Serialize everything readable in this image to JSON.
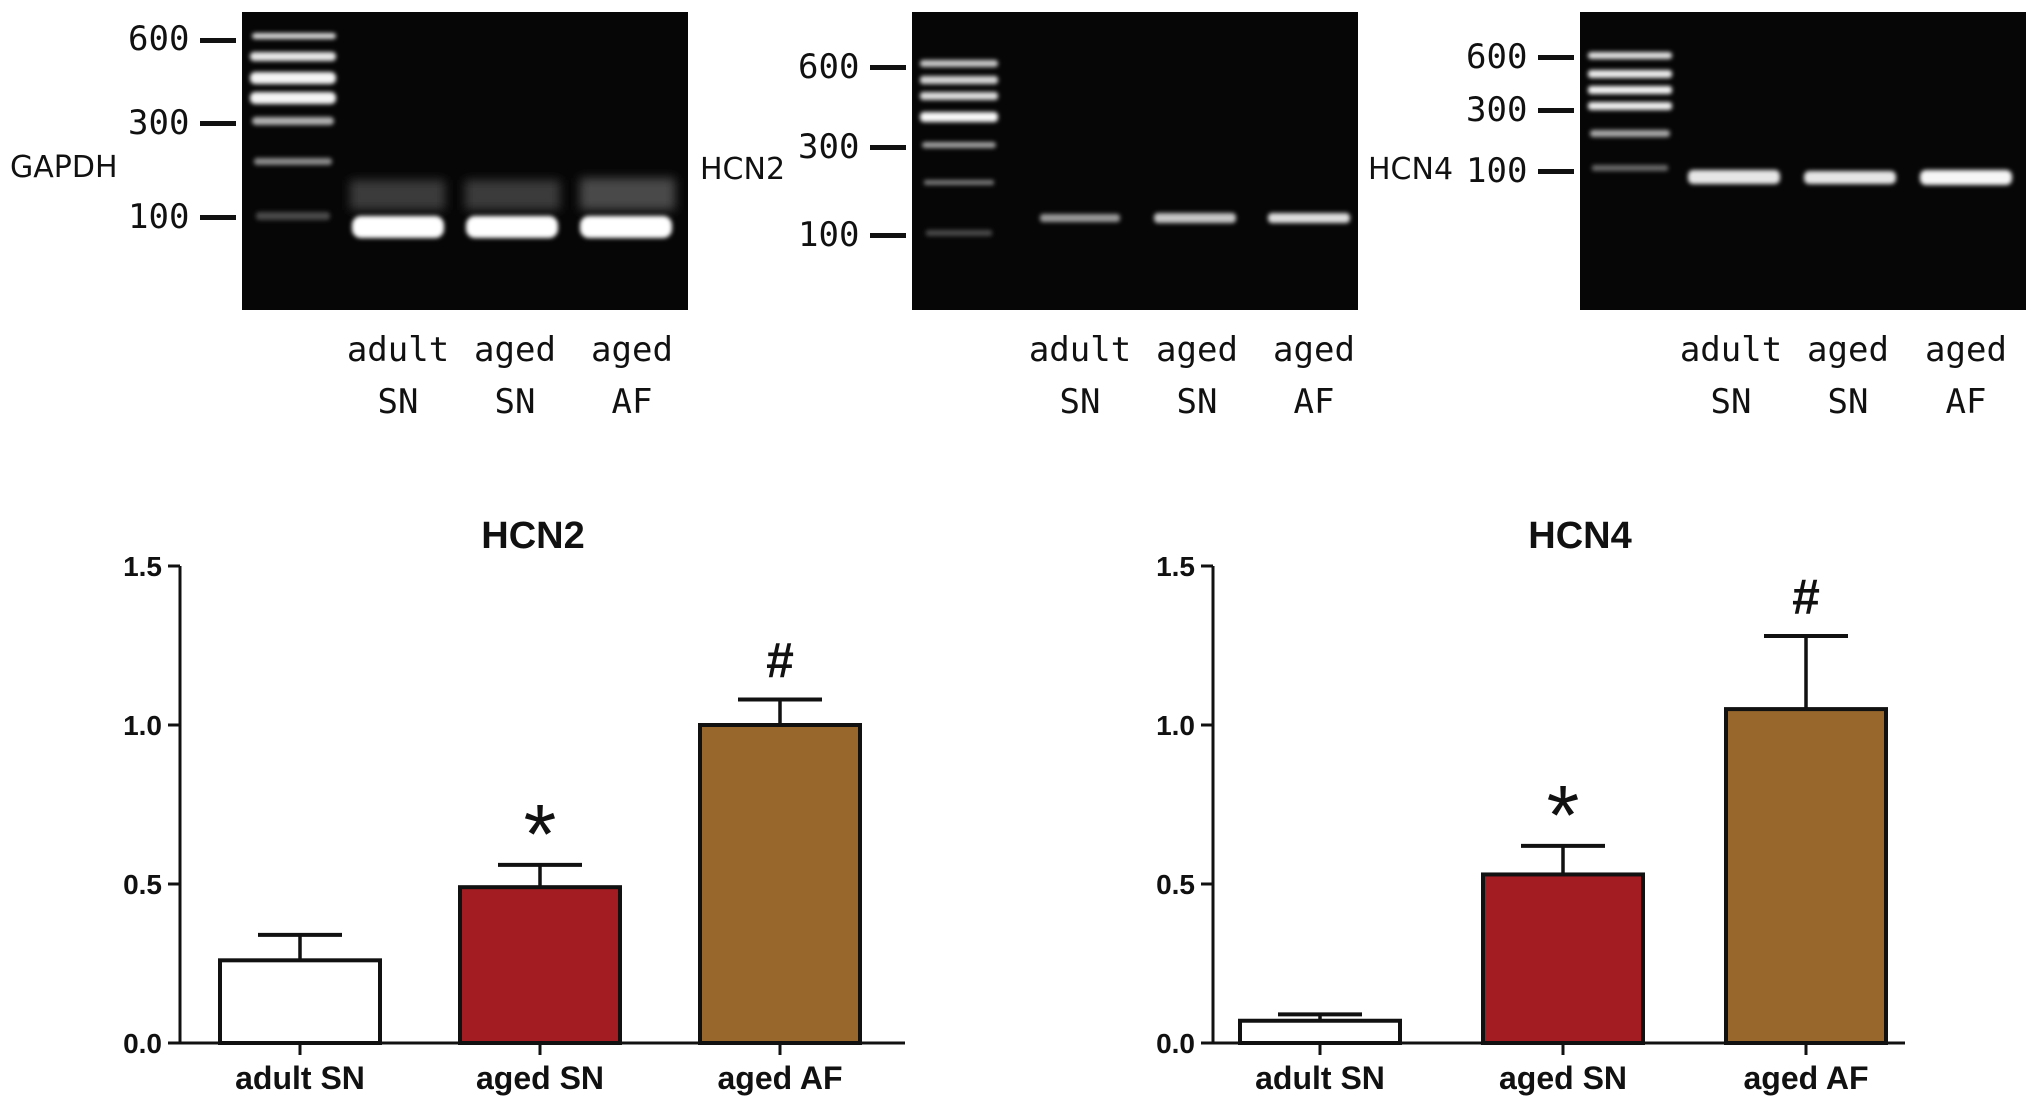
{
  "gels": [
    {
      "gene": "GAPDH",
      "ladder_marks": [
        "600",
        "300",
        "100"
      ],
      "lanes": [
        {
          "line1": "adult",
          "line2": "SN"
        },
        {
          "line1": "aged",
          "line2": "SN"
        },
        {
          "line1": "aged",
          "line2": "AF"
        }
      ]
    },
    {
      "gene": "HCN2",
      "ladder_marks": [
        "600",
        "300",
        "100"
      ],
      "lanes": [
        {
          "line1": "adult",
          "line2": "SN"
        },
        {
          "line1": "aged",
          "line2": "SN"
        },
        {
          "line1": "aged",
          "line2": "AF"
        }
      ]
    },
    {
      "gene": "HCN4",
      "ladder_marks": [
        "600",
        "300",
        "100"
      ],
      "lanes": [
        {
          "line1": "adult",
          "line2": "SN"
        },
        {
          "line1": "aged",
          "line2": "SN"
        },
        {
          "line1": "aged",
          "line2": "AF"
        }
      ]
    }
  ],
  "chart_data": [
    {
      "type": "bar",
      "title": "HCN2",
      "categories": [
        "adult SN",
        "aged SN",
        "aged AF"
      ],
      "values": [
        0.26,
        0.49,
        1.0
      ],
      "errors": [
        0.08,
        0.07,
        0.08
      ],
      "annotations": [
        "",
        "*",
        "#"
      ],
      "colors": [
        "#ffffff",
        "#a31c22",
        "#98672c"
      ],
      "ylim": [
        0,
        1.5
      ],
      "yticks": [
        "0.0",
        "0.5",
        "1.0",
        "1.5"
      ],
      "xlabel": "",
      "ylabel": ""
    },
    {
      "type": "bar",
      "title": "HCN4",
      "categories": [
        "adult SN",
        "aged SN",
        "aged AF"
      ],
      "values": [
        0.07,
        0.53,
        1.05
      ],
      "errors": [
        0.02,
        0.09,
        0.23
      ],
      "annotations": [
        "",
        "*",
        "#"
      ],
      "colors": [
        "#ffffff",
        "#a31c22",
        "#98672c"
      ],
      "ylim": [
        0,
        1.5
      ],
      "yticks": [
        "0.0",
        "0.5",
        "1.0",
        "1.5"
      ],
      "xlabel": "",
      "ylabel": ""
    }
  ]
}
